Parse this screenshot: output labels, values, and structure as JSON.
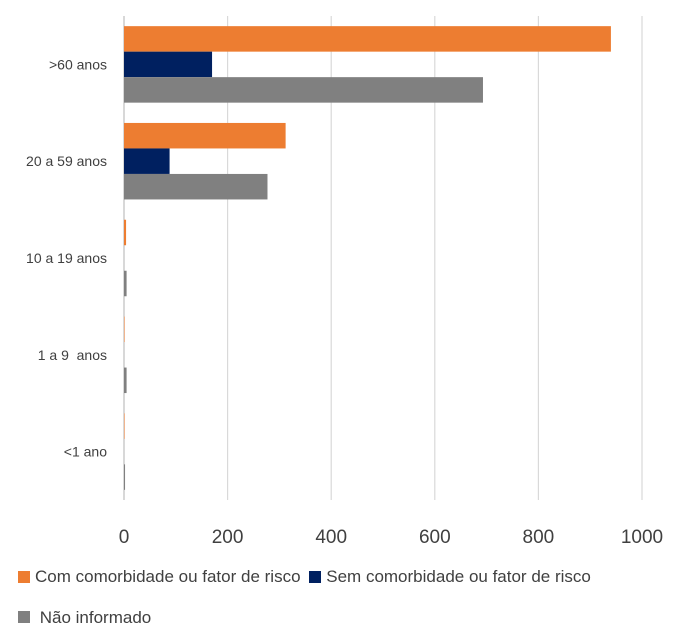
{
  "chart_data": {
    "type": "bar",
    "orientation": "horizontal",
    "categories": [
      ">60 anos",
      "20 a 59 anos",
      "10 a 19 anos",
      "1 a 9  anos",
      "<1 ano"
    ],
    "series": [
      {
        "name": "Com comorbidade ou fator de risco",
        "color": "#ED7D31",
        "values": [
          940,
          312,
          4,
          1,
          1
        ]
      },
      {
        "name": "Sem comorbidade ou fator de risco",
        "color": "#002060",
        "values": [
          170,
          88,
          0,
          0,
          0
        ]
      },
      {
        "name": "Não informado",
        "color": "#808080",
        "values": [
          693,
          277,
          5,
          5,
          2
        ]
      }
    ],
    "xlim": [
      0,
      1000
    ],
    "xticks": [
      "0",
      "200",
      "400",
      "600",
      "800",
      "1000"
    ],
    "grid": true,
    "legend_position": "bottom"
  }
}
